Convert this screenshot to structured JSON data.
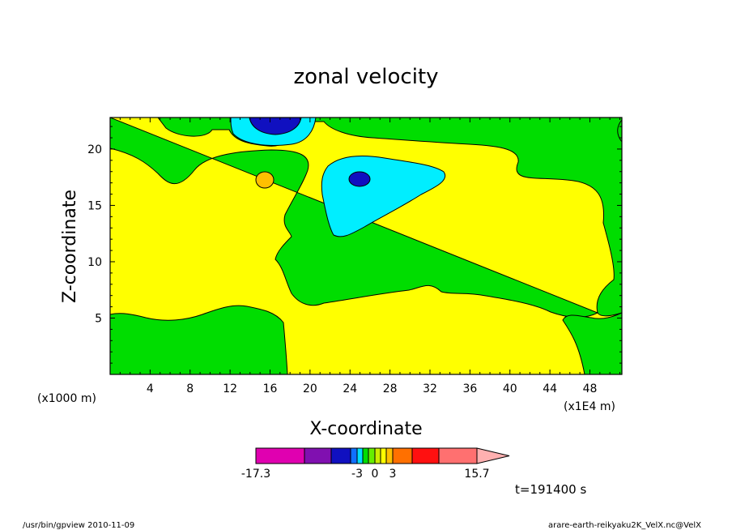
{
  "chart_data": {
    "type": "heatmap",
    "title": "zonal velocity",
    "xlabel": "X-coordinate",
    "ylabel": "Z-coordinate",
    "x_unit_left": "(x1000 m)",
    "x_unit_right": "(x1E4 m)",
    "x_ticks": [
      "4",
      "8",
      "12",
      "16",
      "20",
      "24",
      "28",
      "32",
      "36",
      "40",
      "44",
      "48"
    ],
    "y_ticks": [
      "5",
      "10",
      "15",
      "20"
    ],
    "xlim": [
      0,
      51.2
    ],
    "ylim": [
      0,
      22.8
    ],
    "colorbar": {
      "labels": [
        "-17.3",
        "-3",
        "0",
        "3",
        "15.7"
      ],
      "levels": [
        -17.3,
        -13,
        -9,
        -6,
        -3,
        -2,
        -1,
        0,
        1,
        2,
        3,
        6,
        9,
        12,
        15.7
      ],
      "colors": [
        "#e000b0",
        "#8010b0",
        "#1010c0",
        "#1070ff",
        "#00ddff",
        "#00dd00",
        "#66ee00",
        "#ccee00",
        "#ffff00",
        "#ffc000",
        "#ff7000",
        "#ff1010",
        "#ff7070",
        "#ffb0b0"
      ]
    },
    "regions": [
      {
        "value": "0..1",
        "color": "#ffff00",
        "note": "background"
      },
      {
        "value": "-1..0",
        "color": "#00dd00"
      },
      {
        "value": "-6..-3",
        "color": "#00eeff"
      },
      {
        "value": "-9..-6",
        "color": "#1010c0"
      },
      {
        "value": "1..2",
        "color": "#ffc000"
      }
    ],
    "annotation": "t=191400 s"
  },
  "footer": {
    "left": "/usr/bin/gpview  2010-11-09",
    "right": "arare-earth-reikyaku2K_VelX.nc@VelX"
  }
}
